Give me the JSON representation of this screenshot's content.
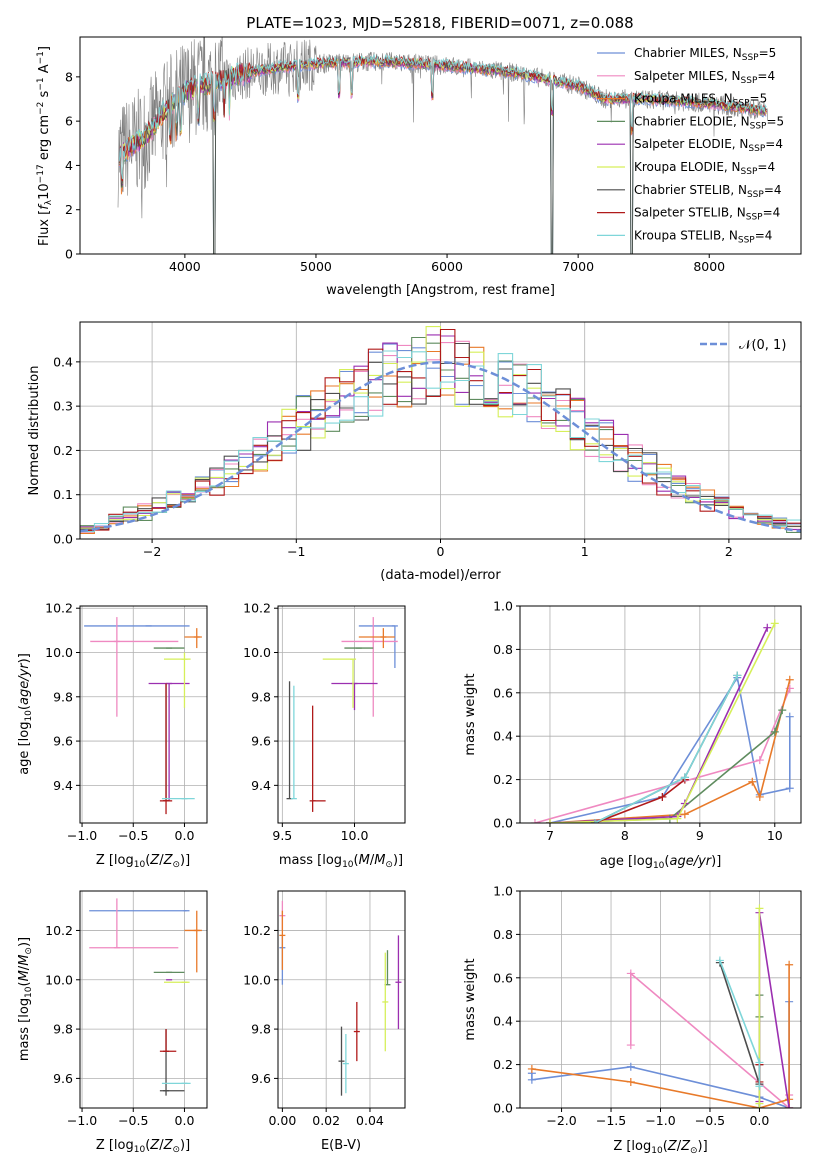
{
  "title": "PLATE=1023, MJD=52818, FIBERID=0071, z=0.088",
  "colors": {
    "chabrier_miles": "#6d8fd8",
    "salpeter_miles": "#ef89c1",
    "kroupa_miles": "#e87a2a",
    "chabrier_elodie": "#5f8c5f",
    "salpeter_elodie": "#9b2fb0",
    "kroupa_elodie": "#d6ef5a",
    "chabrier_stelib": "#4d4d4d",
    "salpeter_stelib": "#b01a1a",
    "kroupa_stelib": "#7fd6d9",
    "grid": "#b0b0b0"
  },
  "legend_spectrum": [
    {
      "key": "chabrier_miles",
      "label": "Chabrier MILES, N",
      "sub": "SSP",
      "tail": "=5"
    },
    {
      "key": "salpeter_miles",
      "label": "Salpeter MILES, N",
      "sub": "SSP",
      "tail": "=4"
    },
    {
      "key": "kroupa_miles",
      "label": "Kroupa MILES, N",
      "sub": "SSP",
      "tail": "=5"
    },
    {
      "key": "chabrier_elodie",
      "label": "Chabrier ELODIE, N",
      "sub": "SSP",
      "tail": "=5"
    },
    {
      "key": "salpeter_elodie",
      "label": "Salpeter ELODIE, N",
      "sub": "SSP",
      "tail": "=4"
    },
    {
      "key": "kroupa_elodie",
      "label": "Kroupa ELODIE, N",
      "sub": "SSP",
      "tail": "=4"
    },
    {
      "key": "chabrier_stelib",
      "label": "Chabrier STELIB, N",
      "sub": "SSP",
      "tail": "=4"
    },
    {
      "key": "salpeter_stelib",
      "label": "Salpeter STELIB, N",
      "sub": "SSP",
      "tail": "=4"
    },
    {
      "key": "kroupa_stelib",
      "label": "Kroupa STELIB, N",
      "sub": "SSP",
      "tail": "=4"
    }
  ],
  "legend_hist": {
    "label": "𝒩(0, 1)"
  },
  "chart_data": [
    {
      "id": "spectrum",
      "type": "line",
      "title": "PLATE=1023, MJD=52818, FIBERID=0071, z=0.088",
      "xlabel": "wavelength [Angstrom, rest frame]",
      "ylabel": "Flux [f_λ 10^-17 erg cm^-2 s^-1 A^-1]",
      "xlim": [
        3200,
        8700
      ],
      "ylim": [
        0,
        9.8
      ],
      "xticks": [
        4000,
        5000,
        6000,
        7000,
        8000
      ],
      "yticks": [
        0,
        2,
        4,
        6,
        8
      ],
      "continuum": {
        "x": [
          3500,
          3600,
          3700,
          3800,
          3900,
          4000,
          4100,
          4200,
          4300,
          4500,
          4700,
          5000,
          5500,
          6000,
          6500,
          7000,
          7200,
          7500,
          8000,
          8500
        ],
        "y": [
          4.5,
          4.9,
          5.3,
          6.1,
          6.8,
          7.3,
          7.6,
          7.7,
          7.9,
          8.2,
          8.4,
          8.6,
          8.7,
          8.5,
          8.2,
          7.6,
          7.0,
          7.0,
          6.8,
          6.4
        ]
      },
      "model_dips": [
        3520,
        3890,
        3934,
        3968,
        4102,
        4226,
        4300,
        4340,
        4861,
        5175,
        5270,
        5890,
        6800,
        7410
      ],
      "grid": false
    },
    {
      "id": "residual-histogram",
      "type": "histogram",
      "xlabel": "(data-model)/error",
      "ylabel": "Normed distribution",
      "xlim": [
        -2.5,
        2.5
      ],
      "ylim": [
        0,
        0.49
      ],
      "xticks": [
        -2,
        -1,
        0,
        1,
        2
      ],
      "yticks": [
        0.0,
        0.1,
        0.2,
        0.3,
        0.4
      ],
      "bin_width": 0.1,
      "legend_position": "top-right",
      "grid": true,
      "reference_curve": {
        "name": "𝒩(0, 1)",
        "mean": 0,
        "sigma": 1
      }
    },
    {
      "id": "age-vs-Z",
      "type": "scatter",
      "xlabel": "Z [log10(Z/Z⊙)]",
      "ylabel": "age [log10(age/yr)]",
      "xlim": [
        -1.02,
        0.22
      ],
      "ylim": [
        9.23,
        10.21
      ],
      "xticks": [
        -1.0,
        -0.5,
        0.0
      ],
      "yticks": [
        9.4,
        9.6,
        9.8,
        10.0,
        10.2
      ],
      "points": [
        {
          "key": "chabrier_miles",
          "x": -0.35,
          "xerr": [
            0.63,
            0.4
          ],
          "y": 10.12,
          "yerr": [
            0.0,
            0.0
          ]
        },
        {
          "key": "salpeter_miles",
          "x": -0.66,
          "xerr": [
            0.26,
            0.6
          ],
          "y": 10.05,
          "yerr": [
            0.34,
            0.11
          ]
        },
        {
          "key": "kroupa_miles",
          "x": 0.12,
          "xerr": [
            0.12,
            0.05
          ],
          "y": 10.07,
          "yerr": [
            0.05,
            0.04
          ]
        },
        {
          "key": "chabrier_elodie",
          "x": -0.15,
          "xerr": [
            0.15,
            0.15
          ],
          "y": 10.02,
          "yerr": [
            0.0,
            0.0
          ]
        },
        {
          "key": "salpeter_elodie",
          "x": -0.15,
          "xerr": [
            0.2,
            0.2
          ],
          "y": 9.86,
          "yerr": [
            0.53,
            0.0
          ]
        },
        {
          "key": "kroupa_elodie",
          "x": 0.0,
          "xerr": [
            0.2,
            0.06
          ],
          "y": 9.97,
          "yerr": [
            0.22,
            0.03
          ]
        },
        {
          "key": "chabrier_stelib",
          "x": -0.18,
          "xerr": [
            0.0,
            0.0
          ],
          "y": 9.33,
          "yerr": [
            0.0,
            0.53
          ]
        },
        {
          "key": "salpeter_stelib",
          "x": -0.18,
          "xerr": [
            0.06,
            0.06
          ],
          "y": 9.33,
          "yerr": [
            0.06,
            0.53
          ]
        },
        {
          "key": "kroupa_stelib",
          "x": 0.0,
          "xerr": [
            0.22,
            0.1
          ],
          "y": 9.34,
          "yerr": [
            0.0,
            0.0
          ]
        }
      ],
      "grid": true
    },
    {
      "id": "age-vs-mass",
      "type": "scatter",
      "xlabel": "mass [log10(M/M⊙)]",
      "ylabel": "",
      "xlim": [
        9.47,
        10.35
      ],
      "ylim": [
        9.23,
        10.21
      ],
      "xticks": [
        9.5,
        10.0
      ],
      "yticks": [
        9.4,
        9.6,
        9.8,
        10.0,
        10.2
      ],
      "points": [
        {
          "key": "chabrier_miles",
          "x": 10.28,
          "xerr": [
            0.25,
            0.0
          ],
          "y": 10.12,
          "yerr": [
            0.19,
            0.0
          ]
        },
        {
          "key": "salpeter_miles",
          "x": 10.13,
          "xerr": [
            0.22,
            0.17
          ],
          "y": 10.05,
          "yerr": [
            0.34,
            0.11
          ]
        },
        {
          "key": "kroupa_miles",
          "x": 10.2,
          "xerr": [
            0.17,
            0.08
          ],
          "y": 10.07,
          "yerr": [
            0.05,
            0.04
          ]
        },
        {
          "key": "chabrier_elodie",
          "x": 10.03,
          "xerr": [
            0.1,
            0.1
          ],
          "y": 10.02,
          "yerr": [
            0.0,
            0.0
          ]
        },
        {
          "key": "salpeter_elodie",
          "x": 10.0,
          "xerr": [
            0.16,
            0.16
          ],
          "y": 9.86,
          "yerr": [
            0.12,
            0.0
          ]
        },
        {
          "key": "kroupa_elodie",
          "x": 9.99,
          "xerr": [
            0.21,
            0.0
          ],
          "y": 9.97,
          "yerr": [
            0.22,
            0.0
          ]
        },
        {
          "key": "chabrier_stelib",
          "x": 9.55,
          "xerr": [
            0.0,
            0.0
          ],
          "y": 9.34,
          "yerr": [
            0.0,
            0.53
          ]
        },
        {
          "key": "salpeter_stelib",
          "x": 9.71,
          "xerr": [
            0.0,
            0.09
          ],
          "y": 9.33,
          "yerr": [
            0.05,
            0.43
          ]
        },
        {
          "key": "kroupa_stelib",
          "x": 9.58,
          "xerr": [
            0.0,
            0.0
          ],
          "y": 9.34,
          "yerr": [
            0.0,
            0.51
          ]
        }
      ],
      "grid": true
    },
    {
      "id": "mass-weight-vs-age",
      "type": "line",
      "xlabel": "age [log10(age/yr)]",
      "ylabel": "mass weight",
      "xlim": [
        6.6,
        10.35
      ],
      "ylim": [
        0,
        1.0
      ],
      "xticks": [
        7,
        8,
        9,
        10
      ],
      "yticks": [
        0.0,
        0.2,
        0.4,
        0.6,
        0.8,
        1.0
      ],
      "series": [
        {
          "key": "chabrier_miles",
          "x": [
            7.0,
            8.5,
            9.5,
            9.8,
            10.2,
            10.2
          ],
          "y": [
            0.0,
            0.12,
            0.67,
            0.13,
            0.16,
            0.49
          ]
        },
        {
          "key": "salpeter_miles",
          "x": [
            6.8,
            9.8,
            10.2,
            10.2
          ],
          "y": [
            0.0,
            0.29,
            0.62,
            0.62
          ]
        },
        {
          "key": "kroupa_miles",
          "x": [
            7.0,
            8.8,
            9.7,
            9.8,
            10.2
          ],
          "y": [
            0.0,
            0.04,
            0.19,
            0.12,
            0.66
          ]
        },
        {
          "key": "chabrier_elodie",
          "x": [
            7.0,
            8.6,
            10.0,
            10.1
          ],
          "y": [
            0.0,
            0.02,
            0.42,
            0.52
          ]
        },
        {
          "key": "salpeter_elodie",
          "x": [
            7.0,
            8.7,
            8.8,
            9.9
          ],
          "y": [
            0.0,
            0.03,
            0.09,
            0.9
          ]
        },
        {
          "key": "kroupa_elodie",
          "x": [
            7.0,
            8.7,
            10.0
          ],
          "y": [
            0.0,
            0.02,
            0.92
          ]
        },
        {
          "key": "chabrier_stelib",
          "x": [
            7.6,
            8.8,
            9.5
          ],
          "y": [
            0.0,
            0.21,
            0.68
          ]
        },
        {
          "key": "salpeter_stelib",
          "x": [
            7.6,
            8.5,
            8.8
          ],
          "y": [
            0.0,
            0.12,
            0.2
          ]
        },
        {
          "key": "kroupa_stelib",
          "x": [
            7.6,
            8.8,
            9.5
          ],
          "y": [
            0.0,
            0.21,
            0.68
          ]
        }
      ],
      "grid": true
    },
    {
      "id": "mass-vs-Z",
      "type": "scatter",
      "xlabel": "Z [log10(Z/Z⊙)]",
      "ylabel": "mass [log10(M/M⊙)]",
      "xlim": [
        -1.02,
        0.22
      ],
      "ylim": [
        9.48,
        10.36
      ],
      "xticks": [
        -1.0,
        -0.5,
        0.0
      ],
      "yticks": [
        9.6,
        9.8,
        10.0,
        10.2
      ],
      "points": [
        {
          "key": "chabrier_miles",
          "x": 0.02,
          "xerr": [
            0.95,
            0.0
          ],
          "y": 10.28,
          "yerr": [
            0.0,
            0.0
          ]
        },
        {
          "key": "salpeter_miles",
          "x": -0.66,
          "xerr": [
            0.27,
            0.6
          ],
          "y": 10.13,
          "yerr": [
            0.0,
            0.2
          ]
        },
        {
          "key": "kroupa_miles",
          "x": 0.12,
          "xerr": [
            0.12,
            0.05
          ],
          "y": 10.2,
          "yerr": [
            0.17,
            0.08
          ]
        },
        {
          "key": "chabrier_elodie",
          "x": -0.15,
          "xerr": [
            0.15,
            0.15
          ],
          "y": 10.03,
          "yerr": [
            0.0,
            0.0
          ]
        },
        {
          "key": "salpeter_elodie",
          "x": -0.15,
          "xerr": [
            0.0,
            0.0
          ],
          "y": 10.0,
          "yerr": [
            0.0,
            0.0
          ]
        },
        {
          "key": "kroupa_elodie",
          "x": 0.0,
          "xerr": [
            0.2,
            0.05
          ],
          "y": 9.99,
          "yerr": [
            0.0,
            0.0
          ]
        },
        {
          "key": "chabrier_stelib",
          "x": -0.18,
          "xerr": [
            0.06,
            0.18
          ],
          "y": 9.55,
          "yerr": [
            0.02,
            0.25
          ]
        },
        {
          "key": "salpeter_stelib",
          "x": -0.18,
          "xerr": [
            0.06,
            0.1
          ],
          "y": 9.71,
          "yerr": [
            0.0,
            0.09
          ]
        },
        {
          "key": "kroupa_stelib",
          "x": 0.0,
          "xerr": [
            0.22,
            0.06
          ],
          "y": 9.58,
          "yerr": [
            0.0,
            0.0
          ]
        }
      ],
      "grid": true
    },
    {
      "id": "mass-vs-EBV",
      "type": "scatter",
      "xlabel": "E(B-V)",
      "ylabel": "",
      "xlim": [
        -0.002,
        0.056
      ],
      "ylim": [
        9.48,
        10.36
      ],
      "xticks": [
        0.0,
        0.02,
        0.04
      ],
      "yticks": [
        9.6,
        9.8,
        10.0,
        10.2
      ],
      "points": [
        {
          "key": "chabrier_miles",
          "x": 0.0,
          "y": 10.13,
          "yerr": [
            0.15,
            0.05
          ]
        },
        {
          "key": "salpeter_miles",
          "x": 0.0,
          "y": 10.26,
          "yerr": [
            0.06,
            0.06
          ]
        },
        {
          "key": "kroupa_miles",
          "x": 0.0,
          "y": 10.18,
          "yerr": [
            0.14,
            0.1
          ]
        },
        {
          "key": "chabrier_elodie",
          "x": 0.048,
          "y": 9.98,
          "yerr": [
            0.0,
            0.14
          ]
        },
        {
          "key": "salpeter_elodie",
          "x": 0.053,
          "y": 9.99,
          "yerr": [
            0.19,
            0.19
          ]
        },
        {
          "key": "kroupa_elodie",
          "x": 0.047,
          "y": 9.91,
          "yerr": [
            0.2,
            0.2
          ]
        },
        {
          "key": "chabrier_stelib",
          "x": 0.027,
          "y": 9.67,
          "yerr": [
            0.14,
            0.14
          ]
        },
        {
          "key": "salpeter_stelib",
          "x": 0.034,
          "y": 9.79,
          "yerr": [
            0.12,
            0.12
          ]
        },
        {
          "key": "kroupa_stelib",
          "x": 0.029,
          "y": 9.66,
          "yerr": [
            0.12,
            0.12
          ]
        }
      ],
      "grid": true
    },
    {
      "id": "mass-weight-vs-Z",
      "type": "line",
      "xlabel": "Z [log10(Z/Z⊙)]",
      "ylabel": "mass weight",
      "xlim": [
        -2.42,
        0.42
      ],
      "ylim": [
        0,
        1.0
      ],
      "xticks": [
        -2.0,
        -1.5,
        -1.0,
        -0.5,
        0.0
      ],
      "yticks": [
        0.0,
        0.2,
        0.4,
        0.6,
        0.8,
        1.0
      ],
      "series": [
        {
          "key": "chabrier_miles",
          "x": [
            -2.3,
            -2.3,
            -1.3,
            0.0,
            0.3,
            0.3
          ],
          "y": [
            0.16,
            0.13,
            0.19,
            0.05,
            0.0,
            0.49
          ]
        },
        {
          "key": "salpeter_miles",
          "x": [
            -1.3,
            -1.3,
            0.3,
            0.3
          ],
          "y": [
            0.29,
            0.62,
            0.0,
            0.06
          ]
        },
        {
          "key": "kroupa_miles",
          "x": [
            -2.3,
            -1.3,
            0.0,
            0.3,
            0.3,
            0.3
          ],
          "y": [
            0.18,
            0.12,
            0.0,
            0.04,
            0.66,
            0.0
          ]
        },
        {
          "key": "chabrier_elodie",
          "x": [
            0.0,
            0.0,
            0.0
          ],
          "y": [
            0.52,
            0.42,
            0.0
          ]
        },
        {
          "key": "salpeter_elodie",
          "x": [
            0.0,
            0.0,
            0.3
          ],
          "y": [
            0.03,
            0.9,
            0.0
          ]
        },
        {
          "key": "kroupa_elodie",
          "x": [
            0.0,
            0.0
          ],
          "y": [
            0.92,
            0.02
          ]
        },
        {
          "key": "chabrier_stelib",
          "x": [
            -0.4,
            0.0,
            0.0
          ],
          "y": [
            0.67,
            0.11,
            0.2
          ]
        },
        {
          "key": "salpeter_stelib",
          "x": [
            0.0,
            0.0
          ],
          "y": [
            0.12,
            0.2
          ]
        },
        {
          "key": "kroupa_stelib",
          "x": [
            -0.4,
            0.0,
            0.0
          ],
          "y": [
            0.68,
            0.21,
            0.1
          ]
        }
      ],
      "grid": true
    }
  ]
}
